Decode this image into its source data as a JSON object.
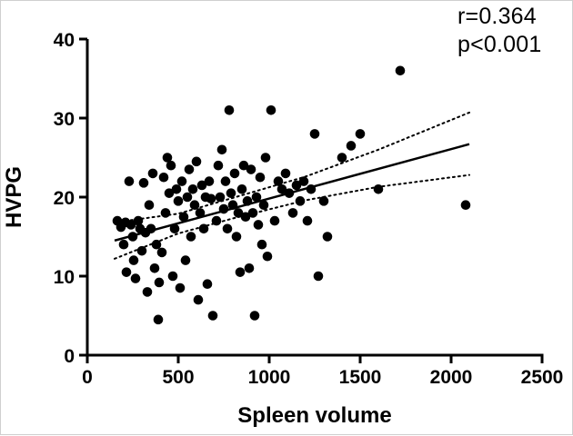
{
  "chart_data": {
    "type": "scatter",
    "title": "",
    "xlabel": "Spleen volume",
    "ylabel": "HVPG",
    "xlim": [
      0,
      2500
    ],
    "ylim": [
      0,
      40
    ],
    "xticks": [
      0,
      500,
      1000,
      1500,
      2000,
      2500
    ],
    "yticks": [
      0,
      10,
      20,
      30,
      40
    ],
    "grid": false,
    "legend": "none",
    "annotations": [
      "r=0.364",
      "p<0.001"
    ],
    "point_color": "#000000",
    "line_color": "#000000",
    "points": [
      [
        165,
        17
      ],
      [
        185,
        16.2
      ],
      [
        200,
        14
      ],
      [
        210,
        16.8
      ],
      [
        215,
        10.5
      ],
      [
        230,
        22
      ],
      [
        240,
        16.5
      ],
      [
        250,
        15
      ],
      [
        255,
        12
      ],
      [
        265,
        9.7
      ],
      [
        280,
        17
      ],
      [
        290,
        16
      ],
      [
        300,
        13.2
      ],
      [
        310,
        21.8
      ],
      [
        320,
        15.5
      ],
      [
        330,
        8
      ],
      [
        340,
        19
      ],
      [
        350,
        16
      ],
      [
        360,
        23
      ],
      [
        370,
        11
      ],
      [
        380,
        14
      ],
      [
        390,
        4.5
      ],
      [
        395,
        9.2
      ],
      [
        410,
        13
      ],
      [
        420,
        22.5
      ],
      [
        430,
        18
      ],
      [
        440,
        25
      ],
      [
        450,
        20.5
      ],
      [
        460,
        24
      ],
      [
        470,
        10
      ],
      [
        480,
        16
      ],
      [
        490,
        21
      ],
      [
        500,
        19.5
      ],
      [
        510,
        8.5
      ],
      [
        520,
        22
      ],
      [
        530,
        17.5
      ],
      [
        540,
        12
      ],
      [
        550,
        20
      ],
      [
        560,
        23.5
      ],
      [
        570,
        15
      ],
      [
        580,
        21
      ],
      [
        590,
        19
      ],
      [
        600,
        24.5
      ],
      [
        610,
        7
      ],
      [
        620,
        18
      ],
      [
        630,
        21.5
      ],
      [
        640,
        16
      ],
      [
        650,
        20
      ],
      [
        660,
        9
      ],
      [
        670,
        22
      ],
      [
        680,
        19.8
      ],
      [
        690,
        5
      ],
      [
        710,
        17
      ],
      [
        720,
        24
      ],
      [
        730,
        20
      ],
      [
        740,
        26
      ],
      [
        750,
        18.5
      ],
      [
        760,
        22
      ],
      [
        770,
        16
      ],
      [
        780,
        31
      ],
      [
        790,
        20.5
      ],
      [
        800,
        19
      ],
      [
        810,
        23
      ],
      [
        820,
        15
      ],
      [
        830,
        18
      ],
      [
        840,
        10.5
      ],
      [
        850,
        21
      ],
      [
        860,
        24
      ],
      [
        870,
        17.5
      ],
      [
        880,
        19.5
      ],
      [
        890,
        11
      ],
      [
        900,
        23.5
      ],
      [
        910,
        18
      ],
      [
        920,
        5
      ],
      [
        930,
        20
      ],
      [
        940,
        16.5
      ],
      [
        950,
        22.5
      ],
      [
        960,
        14
      ],
      [
        970,
        19
      ],
      [
        980,
        25
      ],
      [
        990,
        12.5
      ],
      [
        1010,
        31
      ],
      [
        1030,
        17
      ],
      [
        1050,
        22
      ],
      [
        1070,
        21
      ],
      [
        1090,
        23
      ],
      [
        1110,
        20.5
      ],
      [
        1130,
        18
      ],
      [
        1150,
        21.5
      ],
      [
        1170,
        19.5
      ],
      [
        1190,
        22
      ],
      [
        1210,
        17
      ],
      [
        1230,
        21
      ],
      [
        1250,
        28
      ],
      [
        1270,
        10
      ],
      [
        1300,
        19.5
      ],
      [
        1320,
        15
      ],
      [
        1400,
        25
      ],
      [
        1450,
        26.5
      ],
      [
        1500,
        28
      ],
      [
        1600,
        21
      ],
      [
        1720,
        36
      ],
      [
        2080,
        19
      ]
    ],
    "regression_line": {
      "x": [
        150,
        2100
      ],
      "y": [
        14.5,
        26.7
      ]
    },
    "ci_upper": [
      [
        150,
        16.8
      ],
      [
        500,
        17.9
      ],
      [
        800,
        19.9
      ],
      [
        1200,
        22.6
      ],
      [
        1600,
        26.0
      ],
      [
        2100,
        30.7
      ]
    ],
    "ci_lower": [
      [
        150,
        12.2
      ],
      [
        500,
        15.4
      ],
      [
        800,
        17.3
      ],
      [
        1200,
        19.6
      ],
      [
        1600,
        21.3
      ],
      [
        2100,
        22.8
      ]
    ]
  }
}
